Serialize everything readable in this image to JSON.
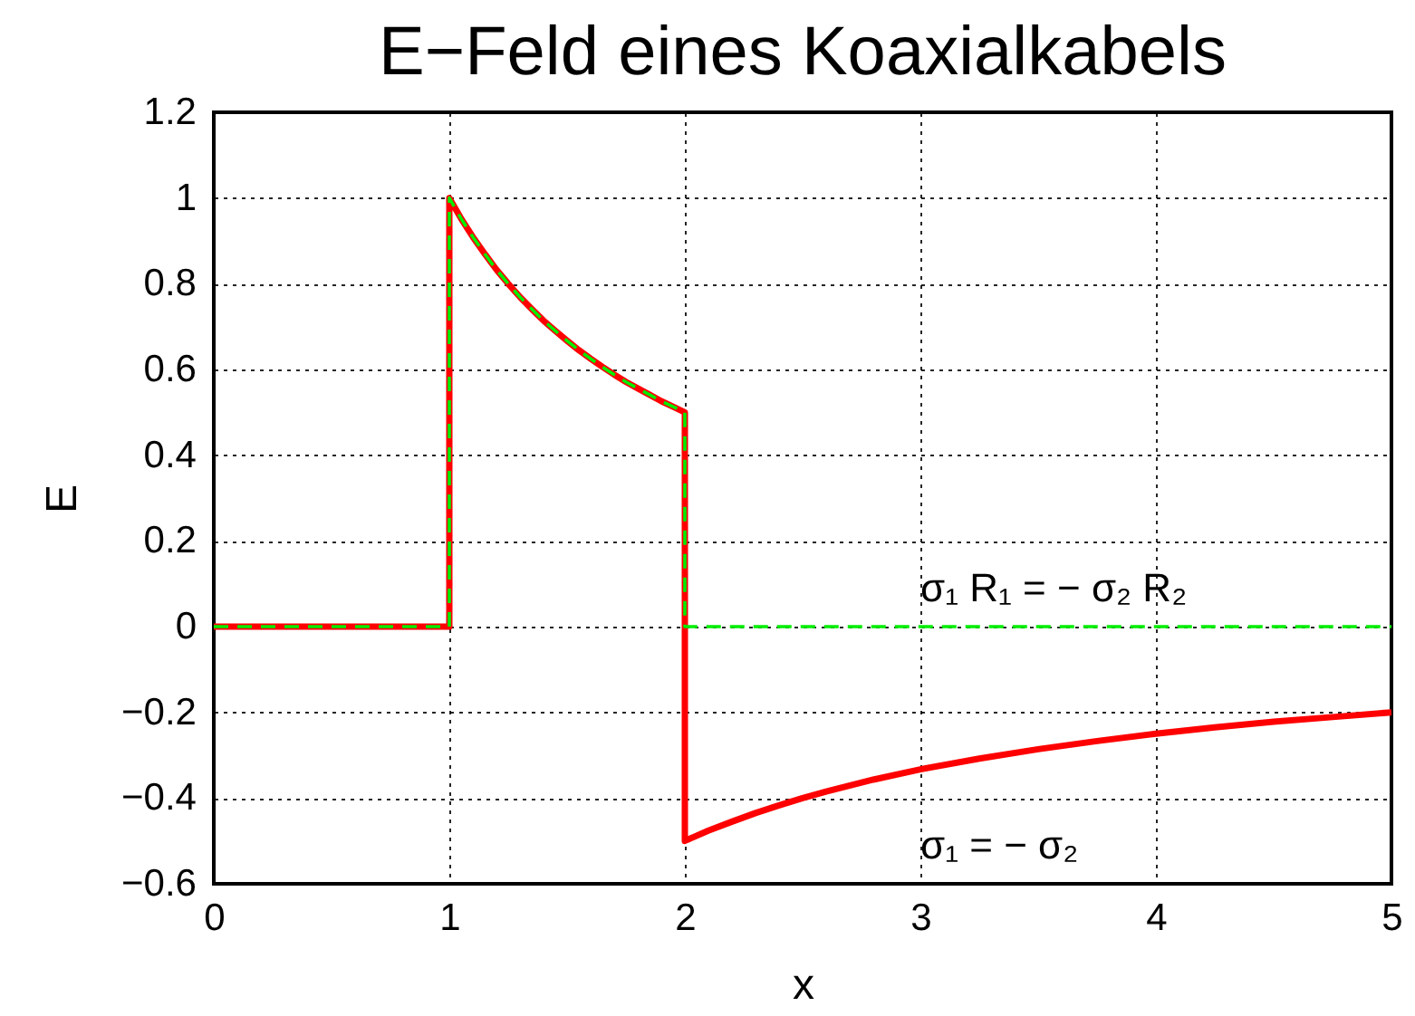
{
  "chart_data": {
    "type": "line",
    "title": "E−Feld eines Koaxialkabels",
    "xlabel": "x",
    "ylabel": "E",
    "series": [
      {
        "color": "#ff0000",
        "line_style": "solid",
        "x": [
          0,
          1,
          1,
          1.05,
          1.1,
          1.15,
          1.2,
          1.25,
          1.3,
          1.35,
          1.4,
          1.45,
          1.5,
          1.55,
          1.6,
          1.65,
          1.7,
          1.75,
          1.8,
          1.85,
          1.9,
          1.95,
          2,
          2,
          2.1,
          2.2,
          2.3,
          2.4,
          2.5,
          2.6,
          2.8,
          3,
          3.25,
          3.5,
          3.75,
          4,
          4.25,
          4.5,
          4.75,
          5
        ],
        "values": [
          0,
          0,
          1,
          0.952,
          0.909,
          0.87,
          0.833,
          0.8,
          0.769,
          0.741,
          0.714,
          0.69,
          0.667,
          0.645,
          0.625,
          0.606,
          0.588,
          0.571,
          0.556,
          0.541,
          0.526,
          0.513,
          0.5,
          -0.5,
          -0.476,
          -0.455,
          -0.435,
          -0.417,
          -0.4,
          -0.385,
          -0.357,
          -0.333,
          -0.308,
          -0.286,
          -0.267,
          -0.25,
          -0.235,
          -0.222,
          -0.211,
          -0.2
        ]
      },
      {
        "color": "#00ee00",
        "line_style": "dashed",
        "x": [
          0,
          1,
          1,
          1.05,
          1.1,
          1.15,
          1.2,
          1.25,
          1.3,
          1.35,
          1.4,
          1.45,
          1.5,
          1.55,
          1.6,
          1.65,
          1.7,
          1.75,
          1.8,
          1.85,
          1.9,
          1.95,
          2,
          2,
          5
        ],
        "values": [
          0,
          0,
          1,
          0.952,
          0.909,
          0.87,
          0.833,
          0.8,
          0.769,
          0.741,
          0.714,
          0.69,
          0.667,
          0.645,
          0.625,
          0.606,
          0.588,
          0.571,
          0.556,
          0.541,
          0.526,
          0.513,
          0.5,
          0,
          0
        ]
      }
    ],
    "xlim": [
      0,
      5
    ],
    "ylim": [
      -0.6,
      1.2
    ],
    "xticks": [
      0,
      1,
      2,
      3,
      4,
      5
    ],
    "yticks": [
      {
        "value": -0.6,
        "label": "−0.6"
      },
      {
        "value": -0.4,
        "label": "−0.4"
      },
      {
        "value": -0.2,
        "label": "−0.2"
      },
      0,
      0.2,
      0.4,
      0.6,
      0.8,
      1,
      1.2
    ],
    "grid": true,
    "annotations": [
      "σ₁ R₁ = − σ₂ R₂",
      "σ₁ = − σ₂"
    ]
  }
}
